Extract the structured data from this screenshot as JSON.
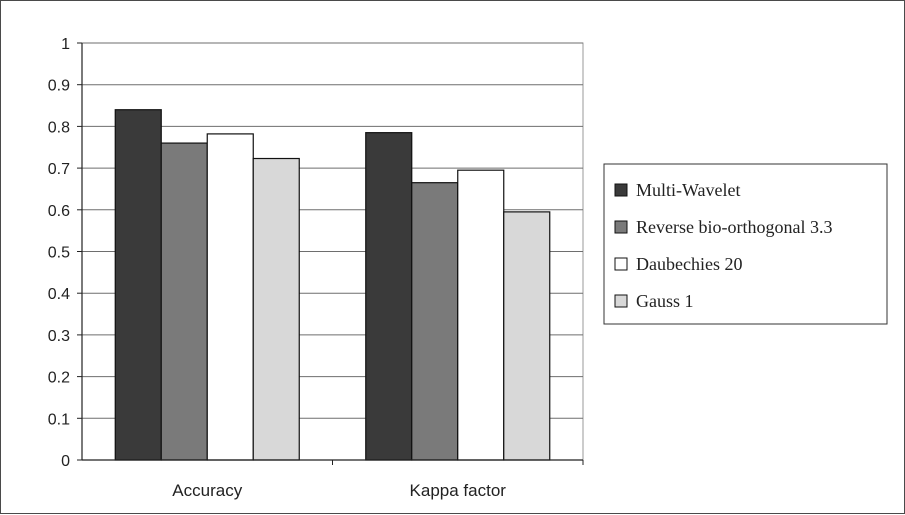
{
  "chart_data": {
    "type": "bar",
    "title": "",
    "xlabel": "",
    "ylabel": "",
    "categories": [
      "Accuracy",
      "Kappa factor"
    ],
    "series": [
      {
        "name": "Multi-Wavelet",
        "values": [
          0.84,
          0.785
        ]
      },
      {
        "name": "Reverse bio-orthogonal 3.3",
        "values": [
          0.76,
          0.665
        ]
      },
      {
        "name": "Daubechies 20",
        "values": [
          0.782,
          0.695
        ]
      },
      {
        "name": "Gauss 1",
        "values": [
          0.723,
          0.595
        ]
      }
    ],
    "ylim": [
      0,
      1
    ],
    "yticks": [
      "0",
      "0.1",
      "0.2",
      "0.3",
      "0.4",
      "0.5",
      "0.6",
      "0.7",
      "0.8",
      "0.9",
      "1"
    ],
    "grid": true,
    "legend": "right",
    "colors": [
      "#3a3a3a",
      "#7a7a7a",
      "#ffffff",
      "#d8d8d8"
    ]
  }
}
